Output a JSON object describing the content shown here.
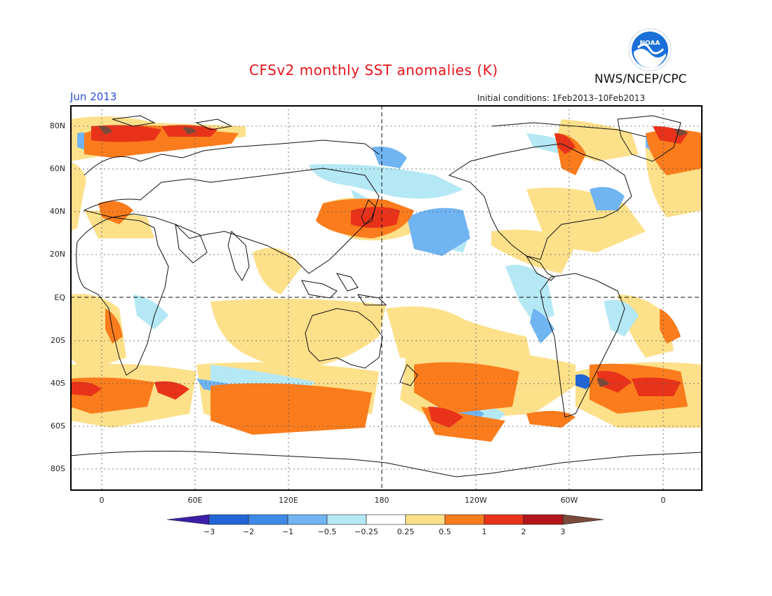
{
  "header": {
    "title": "CFSv2 monthly SST anomalies (K)",
    "agency": "NWS/NCEP/CPC",
    "valid_month": "Jun 2013",
    "initial_conditions": "Initial conditions: 1Feb2013–10Feb2013",
    "logo_text": "NOAA"
  },
  "axes": {
    "lat_labels": [
      "80N",
      "60N",
      "40N",
      "20N",
      "EQ",
      "20S",
      "40S",
      "60S",
      "80S"
    ],
    "lon_labels": [
      "0",
      "60E",
      "120E",
      "180",
      "120W",
      "60W",
      "0"
    ]
  },
  "colorbar": {
    "labels": [
      "−3",
      "−2",
      "−1",
      "−0.5",
      "−0.25",
      "0.25",
      "0.5",
      "1",
      "2",
      "3"
    ],
    "colors": [
      "#3b1fa8",
      "#2166d6",
      "#3d8ae8",
      "#70b4f2",
      "#b4e8f5",
      "#ffffff",
      "#fde08a",
      "#fb7c1c",
      "#e8331a",
      "#b3161a",
      "#7a4a3a"
    ]
  },
  "colors": {
    "title": "#e8141a",
    "valid_month": "#2a4fd4",
    "noaa_blue": "#1a6fd8"
  }
}
